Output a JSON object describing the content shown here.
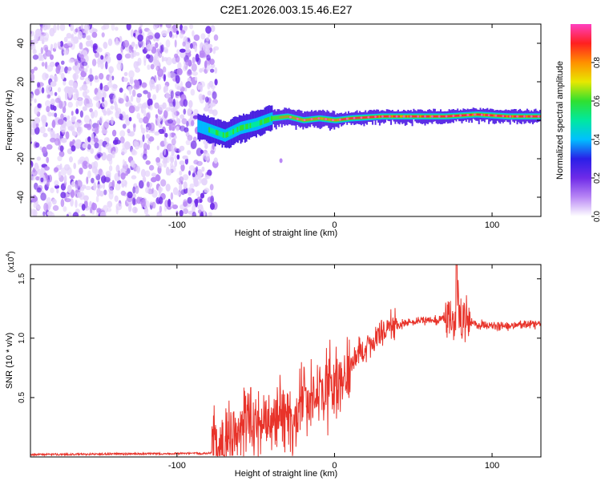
{
  "title": "C2E1.2026.003.15.46.E27",
  "chart_data": [
    {
      "type": "heatmap",
      "title": "C2E1.2026.003.15.46.E27",
      "xlabel": "Height of straight line (km)",
      "ylabel": "Frequency (Hz)",
      "xlim": [
        -193,
        131
      ],
      "ylim": [
        -50,
        50
      ],
      "xticks": [
        -100,
        0,
        100
      ],
      "xtick_labels": [
        "-100",
        "0",
        "100"
      ],
      "yticks": [
        -40,
        -20,
        0,
        20,
        40
      ],
      "ytick_labels": [
        "-40",
        "-20",
        "0",
        "20",
        "40"
      ],
      "noise_region_x": [
        -193,
        -78
      ],
      "signal_ridge": {
        "x": [
          -87,
          -80,
          -70,
          -60,
          -50,
          -40,
          -30,
          -20,
          -10,
          0,
          10,
          30,
          50,
          70,
          90,
          110,
          131
        ],
        "y": [
          -3,
          -5,
          -8,
          -4,
          -2,
          1,
          2,
          0,
          1,
          0,
          1,
          2,
          2,
          2,
          3,
          2,
          2
        ]
      },
      "colorbar": {
        "label": "Normalized spectral amplitude",
        "min": 0,
        "max": 1,
        "ticks": [
          0.0,
          0.2,
          0.4,
          0.6,
          0.8
        ],
        "tick_labels": [
          "0.0",
          "0.2",
          "0.4",
          "0.6",
          "0.8"
        ],
        "colors": [
          "#ffffff",
          "#b987f5",
          "#6f2be8",
          "#2a1fe8",
          "#00c0ff",
          "#00e8a0",
          "#30e030",
          "#e8e800",
          "#ff9000",
          "#ff2020",
          "#ff40c0"
        ]
      }
    },
    {
      "type": "line",
      "xlabel": "Height of straight line (km)",
      "ylabel": "SNR (10 * v/v)",
      "yscale_label": "(x10",
      "yscale_exp": "4",
      "yscale_close": ")",
      "xlim": [
        -193,
        131
      ],
      "ylim": [
        0,
        1.62
      ],
      "xticks": [
        -100,
        0,
        100
      ],
      "xtick_labels": [
        "-100",
        "0",
        "100"
      ],
      "yticks": [
        0.5,
        1.0,
        1.5
      ],
      "ytick_labels": [
        "0.5",
        "1.0",
        "1.5"
      ],
      "color": "#e8332a",
      "series": [
        {
          "name": "SNR",
          "x": [
            -193,
            -80,
            -72,
            -65,
            -55,
            -45,
            -35,
            -25,
            -15,
            -5,
            5,
            15,
            25,
            35,
            45,
            55,
            65,
            72,
            76,
            78,
            80,
            90,
            100,
            110,
            131
          ],
          "y": [
            0.02,
            0.03,
            0.06,
            0.2,
            0.25,
            0.3,
            0.35,
            0.4,
            0.5,
            0.6,
            0.7,
            0.85,
            1.0,
            1.1,
            1.12,
            1.15,
            1.15,
            1.2,
            1.1,
            1.3,
            1.15,
            1.12,
            1.1,
            1.1,
            1.12
          ]
        }
      ]
    }
  ]
}
